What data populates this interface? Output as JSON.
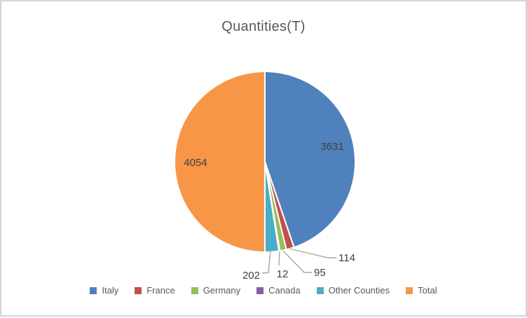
{
  "window": {
    "background": "#ffffff",
    "border_color": "#d4d4d4"
  },
  "chart_data": {
    "type": "pie",
    "title": "Quantities(T)",
    "categories": [
      "Italy",
      "France",
      "Germany",
      "Canada",
      "Other Counties",
      "Total"
    ],
    "values": [
      3631,
      114,
      95,
      12,
      202,
      4054
    ],
    "colors": [
      "#4f81bd",
      "#c0504d",
      "#9bbb59",
      "#8064a2",
      "#4bacc6",
      "#f79646"
    ],
    "data_labels": [
      "3631",
      "114",
      "95",
      "12",
      "202",
      "4054"
    ],
    "legend_position": "bottom",
    "start_angle_deg": 0,
    "direction": "clockwise",
    "styles": {
      "title_color": "#595959",
      "data_label_color": "#404040",
      "leader_line_color": "#a6a6a6",
      "legend_text_color": "#595959",
      "slice_border_color": "#ffffff"
    }
  }
}
